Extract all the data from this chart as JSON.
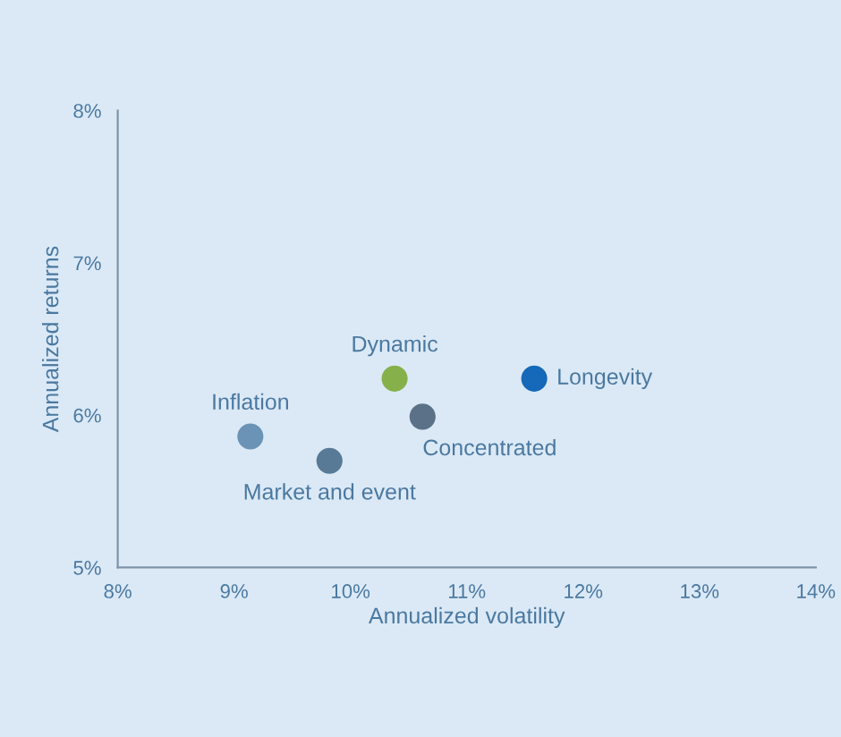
{
  "chart_data": {
    "type": "scatter",
    "xlabel": "Annualized volatility",
    "ylabel": "Annualized returns",
    "xlim": [
      8,
      14
    ],
    "ylim": [
      5,
      8
    ],
    "xticks": [
      {
        "value": 8,
        "label": "8%"
      },
      {
        "value": 9,
        "label": "9%"
      },
      {
        "value": 10,
        "label": "10%"
      },
      {
        "value": 11,
        "label": "11%"
      },
      {
        "value": 12,
        "label": "12%"
      },
      {
        "value": 13,
        "label": "13%"
      },
      {
        "value": 14,
        "label": "14%"
      }
    ],
    "yticks": [
      {
        "value": 5,
        "label": "5%"
      },
      {
        "value": 6,
        "label": "6%"
      },
      {
        "value": 7,
        "label": "7%"
      },
      {
        "value": 8,
        "label": "8%"
      }
    ],
    "grid": false,
    "marker": "circle",
    "series": [
      {
        "name": "Inflation",
        "color": "#6a93b5",
        "x": [
          9.14
        ],
        "values": [
          5.86
        ]
      },
      {
        "name": "Market and event",
        "color": "#587a96",
        "x": [
          9.82
        ],
        "values": [
          5.7
        ]
      },
      {
        "name": "Dynamic",
        "color": "#86b04a",
        "x": [
          10.38
        ],
        "values": [
          6.24
        ]
      },
      {
        "name": "Concentrated",
        "color": "#5a7187",
        "x": [
          10.62
        ],
        "values": [
          5.99
        ]
      },
      {
        "name": "Longevity",
        "color": "#1668b8",
        "x": [
          11.58
        ],
        "values": [
          6.24
        ]
      }
    ]
  }
}
